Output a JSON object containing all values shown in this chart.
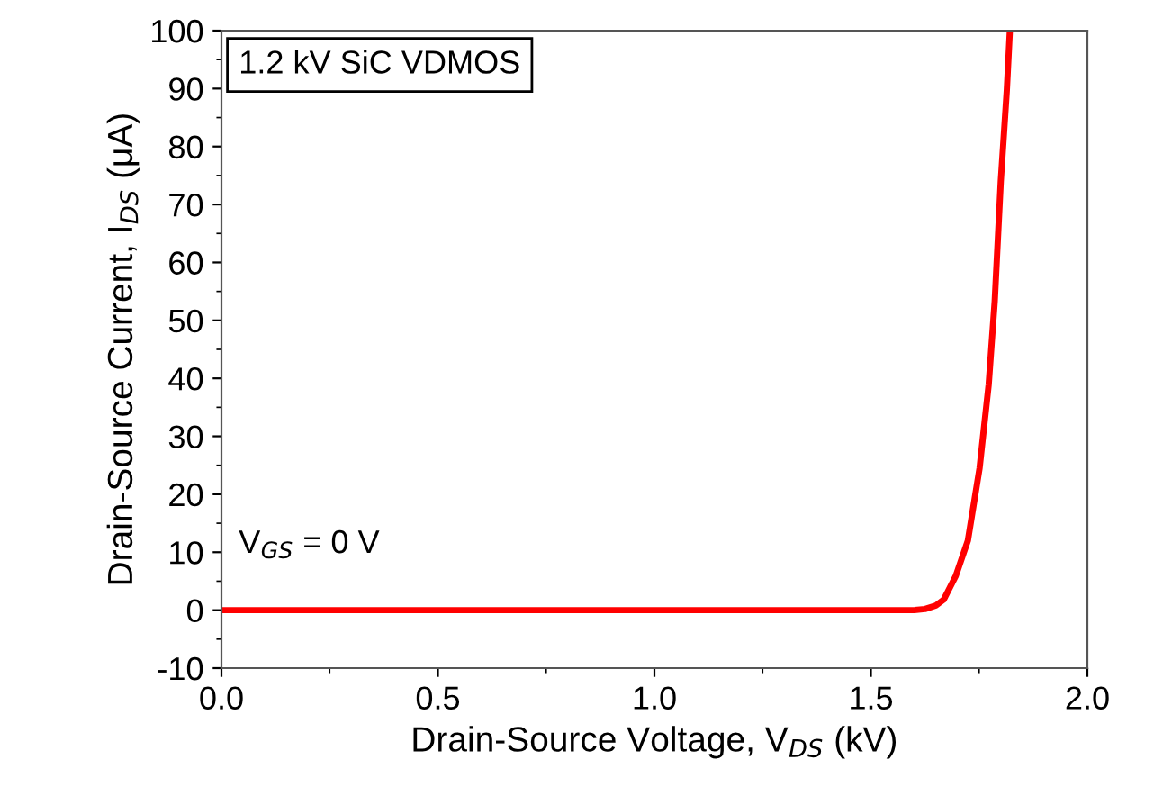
{
  "chart_data": {
    "type": "line",
    "xlabel": "Drain-Source Voltage, V$_{DS}$ (kV)",
    "ylabel": "Drain-Source Current, I$_{DS}$ (μA)",
    "annotations": [
      "1.2 kV SiC VDMOS",
      "V$_{GS}$ = 0 V"
    ],
    "series": [
      {
        "color": "#ff0000",
        "x": [
          0.0,
          0.5,
          1.0,
          1.5,
          1.6,
          1.625,
          1.65,
          1.668,
          1.696,
          1.724,
          1.751,
          1.772,
          1.786,
          1.8,
          1.814,
          1.821
        ],
        "values": [
          0,
          0,
          0,
          0,
          0,
          0.2,
          0.8,
          1.8,
          5.9,
          12,
          24.5,
          38.9,
          53.3,
          74,
          89.8,
          100
        ]
      }
    ],
    "xlim": [
      0,
      2.0
    ],
    "ylim": [
      -10,
      100
    ],
    "xticks": [
      {
        "value": 0,
        "label": "0.0"
      },
      {
        "value": 0.5,
        "label": "0.5"
      },
      {
        "value": 1.0,
        "label": "1.0"
      },
      {
        "value": 1.5,
        "label": "1.5"
      },
      {
        "value": 2.0,
        "label": "2.0"
      }
    ],
    "yticks": [
      -10,
      0,
      10,
      20,
      30,
      40,
      50,
      60,
      70,
      80,
      90,
      100
    ],
    "grid": false,
    "legend": false,
    "marker": "none",
    "line_style": "solid"
  }
}
